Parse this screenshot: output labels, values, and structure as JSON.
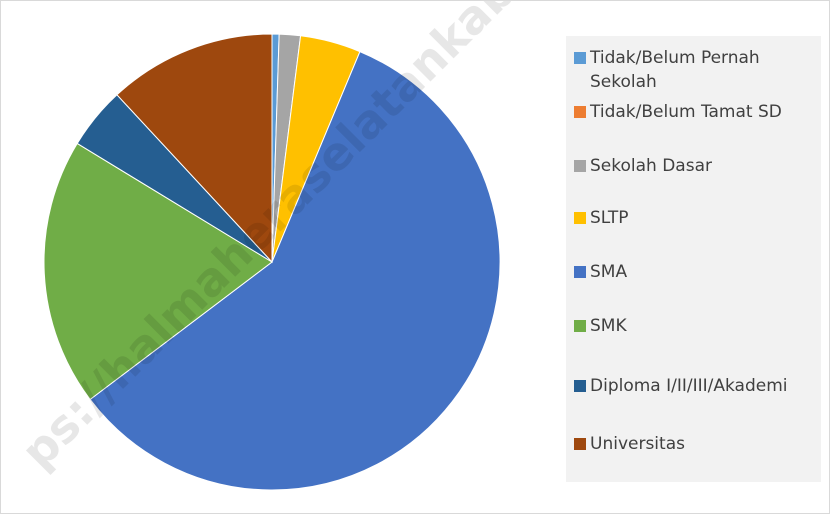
{
  "chart_data": {
    "type": "pie",
    "categories": [
      "Tidak/Belum Pernah Sekolah",
      "Tidak/Belum Tamat SD",
      "Sekolah Dasar",
      "SLTP",
      "SMA",
      "SMK",
      "Diploma I/II/III/Akademi",
      "Universitas"
    ],
    "values": [
      0.5,
      0,
      1.5,
      4.3,
      58.4,
      19,
      4.4,
      11.9
    ],
    "colors": [
      "#5b9bd5",
      "#ed7d31",
      "#a5a5a5",
      "#ffc000",
      "#4472c4",
      "#70ad47",
      "#255e91",
      "#9e480e"
    ],
    "legend": "right",
    "watermark": "ps://halmaheraselatankab.bps"
  }
}
